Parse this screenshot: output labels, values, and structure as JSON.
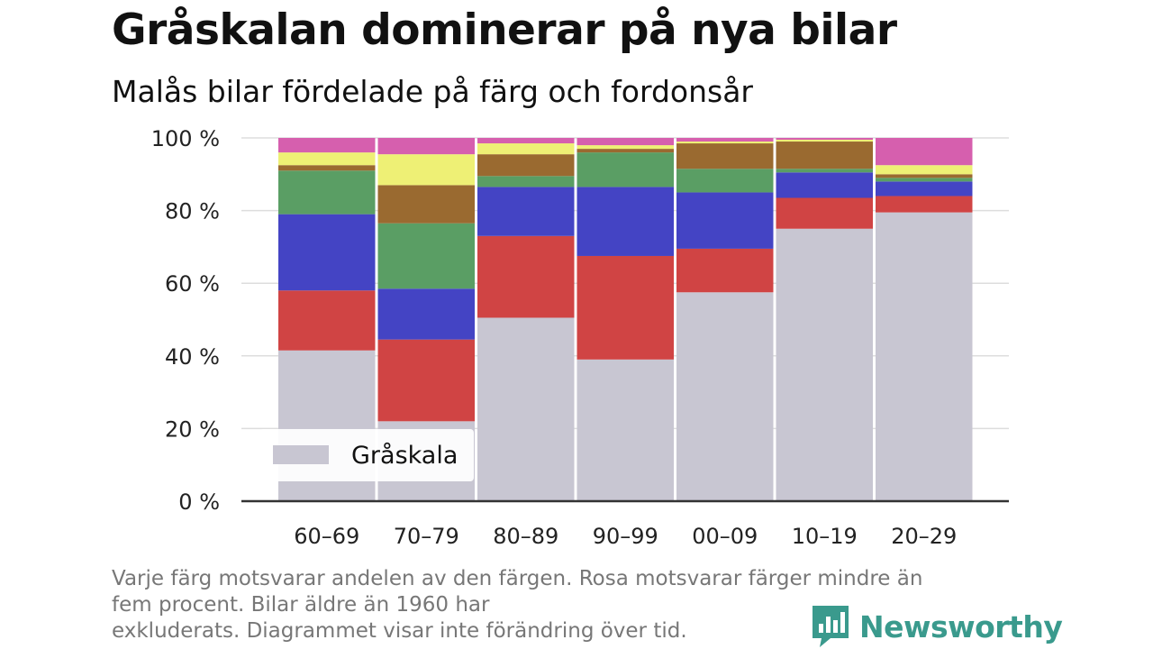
{
  "header": {
    "title": "Gråskalan dominerar på nya bilar",
    "subtitle": "Malås bilar fördelade på färg och fordonsår"
  },
  "chart_data": {
    "type": "bar",
    "stacked": true,
    "title": "Gråskalan dominerar på nya bilar",
    "subtitle": "Malås bilar fördelade på färg och fordonsår",
    "xlabel": "",
    "ylabel": "",
    "ylim": [
      0,
      100
    ],
    "y_ticks": [
      "0 %",
      "20 %",
      "40 %",
      "60 %",
      "80 %",
      "100 %"
    ],
    "grid": true,
    "legend_placement": "bottom-left",
    "categories": [
      "60–69",
      "70–79",
      "80–89",
      "90–99",
      "00–09",
      "10–19",
      "20–29"
    ],
    "series": [
      {
        "name": "Gråskala",
        "color": "#c8c6d2",
        "values": [
          41.5,
          22,
          50.5,
          39,
          57.5,
          75,
          79.5
        ]
      },
      {
        "color": "#d04444",
        "values": [
          16.5,
          22.5,
          22.5,
          28.5,
          12,
          8.5,
          4.5
        ]
      },
      {
        "color": "#4444c4",
        "values": [
          21,
          14,
          13.5,
          19,
          15.5,
          7,
          4
        ]
      },
      {
        "color": "#5a9e64",
        "values": [
          12,
          18,
          3,
          9.5,
          6.5,
          1,
          1
        ]
      },
      {
        "color": "#9a6a30",
        "values": [
          1.5,
          10.5,
          6,
          1,
          7,
          7.5,
          1
        ]
      },
      {
        "color": "#eef075",
        "values": [
          3.5,
          8.5,
          3,
          1,
          0.5,
          0.5,
          2.5
        ]
      },
      {
        "color": "#d65fae",
        "values": [
          4,
          4.5,
          1.5,
          2,
          1,
          0.5,
          7.5
        ]
      }
    ]
  },
  "footnote": {
    "line1": "Varje färg motsvarar andelen av den färgen. Rosa motsvarar färger mindre än",
    "line2": "fem procent. Bilar äldre än 1960 har",
    "line3": "exkluderats. Diagrammet visar inte förändring över tid."
  },
  "brand": {
    "name": "Newsworthy",
    "icon": "newsworthy-logo-icon",
    "color": "#3a9a8d"
  }
}
